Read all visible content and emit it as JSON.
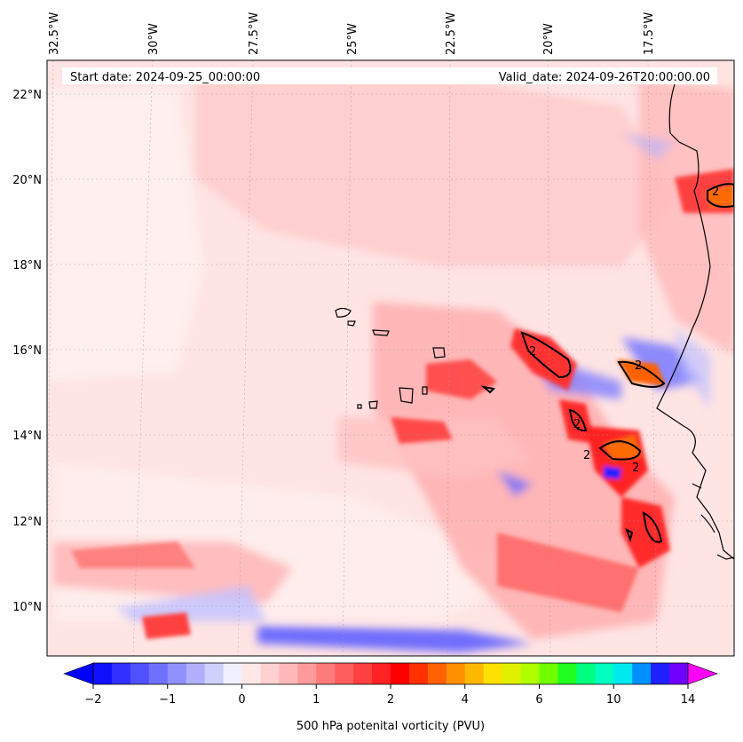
{
  "header": {
    "start_date": "Start date: 2024-09-25_00:00:00",
    "valid_date": "Valid_date: 2024-09-26T20:00:00.00"
  },
  "axes": {
    "lon_labels": [
      "32.5°W",
      "30°W",
      "27.5°W",
      "25°W",
      "22.5°W",
      "20°W",
      "17.5°W"
    ],
    "lat_labels": [
      "22°N",
      "20°N",
      "18°N",
      "16°N",
      "14°N",
      "12°N",
      "10°N"
    ]
  },
  "colorbar": {
    "ticks": [
      "−2",
      "−1",
      "0",
      "1",
      "2",
      "4",
      "6",
      "10",
      "14"
    ],
    "label": "500 hPa potenital vorticity (PVU)",
    "colors": [
      "#1010ff",
      "#3030ff",
      "#5050ff",
      "#7070ff",
      "#9090ff",
      "#b0b0ff",
      "#d0d0ff",
      "#f0f0ff",
      "#ffe8e8",
      "#ffd0d0",
      "#ffb8b8",
      "#ff9a9a",
      "#ff7c7c",
      "#ff5e5e",
      "#ff4040",
      "#ff2222",
      "#ff0000",
      "#ff3000",
      "#ff6000",
      "#ff9000",
      "#ffb800",
      "#ffe000",
      "#e0f000",
      "#b0ff00",
      "#70ff00",
      "#20ff20",
      "#00ff80",
      "#00ffc0",
      "#00e8f0",
      "#0090ff",
      "#2020ff",
      "#7000ff"
    ]
  },
  "contour_labels": [
    "2",
    "2",
    "2",
    "2",
    "2",
    "2"
  ],
  "colors": {
    "background": "#ffe4e4",
    "contour": "#000000",
    "coast": "#000000"
  }
}
